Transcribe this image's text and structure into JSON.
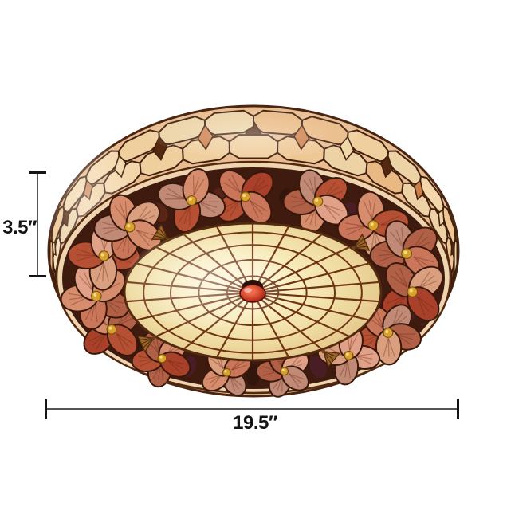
{
  "image": {
    "alt": "Tiffany style round shell flush mount ceiling lamp, lit, with flower ring of scallop shells, honeycomb stained-glass drum band, spider-web cream glass center and red finial, shown with size annotations",
    "background_color": "#ffffff"
  },
  "annotation": {
    "height_label": "3.5″",
    "width_label": "19.5″",
    "line_color": "#555555",
    "tick_color": "#141414",
    "text_color": "#141414"
  },
  "lamp": {
    "lead_color": "#40200d",
    "drum_base_color": "#e9bd90",
    "honeycomb_palette": [
      "#f3d7ab",
      "#eec795",
      "#f6e0ba",
      "#e9b983",
      "#f0cf9f",
      "#ecd2a4"
    ],
    "diamond_palette": [
      "#54280f",
      "#cd7f4a",
      "#f0d7a8"
    ],
    "face_rim_color_inner": "#f7e4c6",
    "face_rim_color_outer": "#edd0ab",
    "flower_ring_background": "#3f1a0e",
    "dark_shell_palette": [
      "#31150d",
      "#4a1e28",
      "#5c2617",
      "#3c1c12"
    ],
    "petal_palette": [
      "#d68d6d",
      "#e0a188",
      "#c9765a",
      "#b65034",
      "#a8402a",
      "#c08a76",
      "#d99f7f",
      "#b06046"
    ],
    "petal_outline": "#38180a",
    "gold_bead_color": "#d9a22c",
    "gold_bead_edge": "#7a5210",
    "web_glass_stops": [
      "#fff8dc",
      "#f8ecbc",
      "#eeda9f",
      "#e2c185"
    ],
    "web_line_color": "#6e3312",
    "bronze_shell_color": "#9a6526",
    "bronze_shell_edge": "#4c2a0e",
    "finial_light": "#ef6a4a",
    "finial_dark": "#a31508",
    "finial_cap": "#2a1208"
  }
}
